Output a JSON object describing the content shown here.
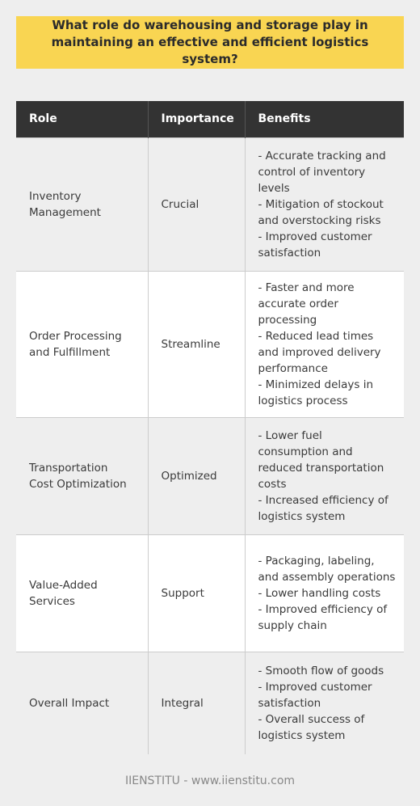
{
  "title": "What role do warehousing and storage play in maintaining an effective and efficient logistics system?",
  "table": {
    "headers": [
      "Role",
      "Importance",
      "Benefits"
    ],
    "rows": [
      {
        "role": "Inventory Management",
        "importance": "Crucial",
        "benefits": [
          "- Accurate tracking and control of inventory levels",
          "- Mitigation of stockout and overstocking risks",
          "- Improved customer satisfaction"
        ]
      },
      {
        "role": "Order Processing and Fulfillment",
        "importance": "Streamline",
        "benefits": [
          "- Faster and more accurate order processing",
          "- Reduced lead times and improved delivery performance",
          "- Minimized delays in logistics process"
        ]
      },
      {
        "role": "Transportation Cost Optimization",
        "importance": "Optimized",
        "benefits": [
          "- Lower fuel consumption and reduced transportation costs",
          "- Increased efficiency of logistics system"
        ]
      },
      {
        "role": "Value-Added Services",
        "importance": "Support",
        "benefits": [
          "- Packaging, labeling, and assembly operations",
          "- Lower handling costs",
          "- Improved efficiency of supply chain"
        ]
      },
      {
        "role": "Overall Impact",
        "importance": "Integral",
        "benefits": [
          "- Smooth flow of goods",
          "- Improved customer satisfaction",
          "- Overall success of logistics system"
        ]
      }
    ]
  },
  "footer": "IIENSTITU - www.iienstitu.com"
}
